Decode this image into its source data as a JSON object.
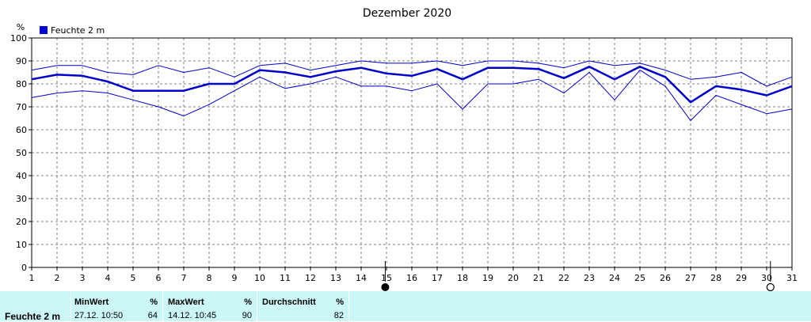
{
  "chart_data": {
    "type": "line",
    "title": "Dezember 2020",
    "ylabel": "%",
    "ylim": [
      0,
      100
    ],
    "yticks": [
      0,
      10,
      20,
      30,
      40,
      50,
      60,
      70,
      80,
      90,
      100
    ],
    "x": [
      1,
      2,
      3,
      4,
      5,
      6,
      7,
      8,
      9,
      10,
      11,
      12,
      13,
      14,
      15,
      16,
      17,
      18,
      19,
      20,
      21,
      22,
      23,
      24,
      25,
      26,
      27,
      28,
      29,
      30,
      31
    ],
    "grid": true,
    "legend": "top-left",
    "legend_label": "Feuchte  2 m",
    "series": [
      {
        "role": "max",
        "values": [
          86,
          88,
          88,
          85,
          84,
          88,
          85,
          87,
          83,
          88,
          89,
          86,
          88,
          90,
          89,
          89,
          90,
          88,
          90,
          90,
          89,
          87,
          90,
          88,
          89,
          86,
          82,
          83,
          85,
          79,
          83
        ]
      },
      {
        "role": "avg",
        "values": [
          82,
          84,
          83.5,
          81,
          77,
          77,
          77,
          80,
          80,
          86,
          85,
          83,
          85.5,
          87,
          84.5,
          83.5,
          86.5,
          82,
          87,
          87,
          86.5,
          82.5,
          87.5,
          82,
          87.5,
          83,
          72,
          79,
          77.5,
          75,
          79
        ]
      },
      {
        "role": "min",
        "values": [
          74,
          76,
          77,
          76,
          73,
          70,
          66,
          71,
          77,
          83,
          78,
          80,
          83,
          79,
          79,
          77,
          80,
          69,
          80,
          80,
          82,
          76,
          85,
          73,
          86,
          79,
          64,
          75,
          71,
          67,
          69
        ]
      }
    ],
    "markers": [
      {
        "x": 14.95,
        "symbol": "new-moon"
      },
      {
        "x": 30.15,
        "symbol": "full-moon"
      }
    ]
  },
  "stats": {
    "row_label": "Feuchte  2 m",
    "min": {
      "header": "MinWert",
      "unit": "%",
      "time": "27.12.  10:50",
      "value": "64"
    },
    "max": {
      "header": "MaxWert",
      "unit": "%",
      "time": "14.12.  10:45",
      "value": "90"
    },
    "avg": {
      "header": "Durchschnitt",
      "unit": "%",
      "value": "82"
    }
  },
  "colors": {
    "line": "#0000cc",
    "grid": "#808080",
    "stats_bg": "#ccf7f7"
  }
}
